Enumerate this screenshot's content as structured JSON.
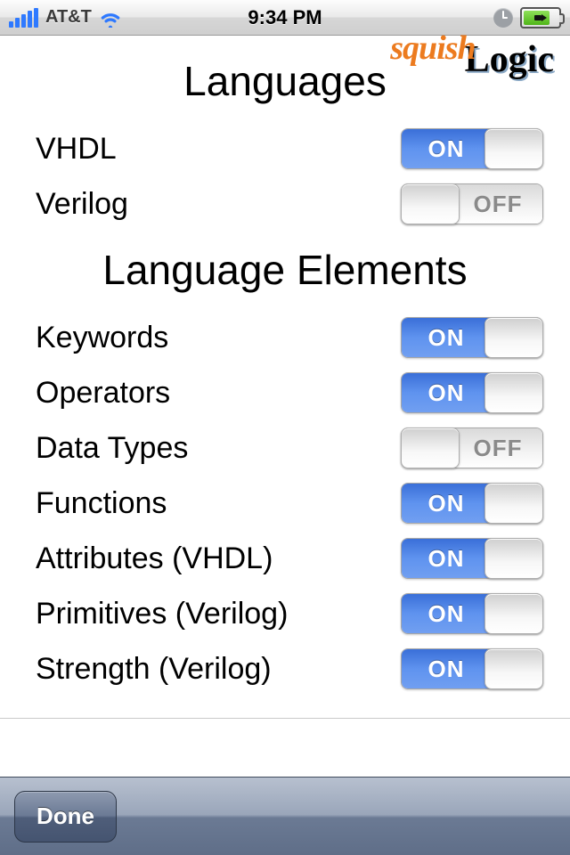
{
  "status": {
    "carrier": "AT&T",
    "time": "9:34 PM"
  },
  "logo": {
    "part1": "squish",
    "part2": "Logic"
  },
  "sections": {
    "languages": {
      "title": "Languages",
      "rows": [
        {
          "label": "VHDL",
          "state": "on"
        },
        {
          "label": "Verilog",
          "state": "off"
        }
      ]
    },
    "elements": {
      "title": "Language Elements",
      "rows": [
        {
          "label": "Keywords",
          "state": "on"
        },
        {
          "label": "Operators",
          "state": "on"
        },
        {
          "label": "Data Types",
          "state": "off"
        },
        {
          "label": "Functions",
          "state": "on"
        },
        {
          "label": "Attributes (VHDL)",
          "state": "on"
        },
        {
          "label": "Primitives (Verilog)",
          "state": "on"
        },
        {
          "label": "Strength (Verilog)",
          "state": "on"
        }
      ]
    }
  },
  "toggle_labels": {
    "on": "ON",
    "off": "OFF"
  },
  "toolbar": {
    "done": "Done"
  }
}
